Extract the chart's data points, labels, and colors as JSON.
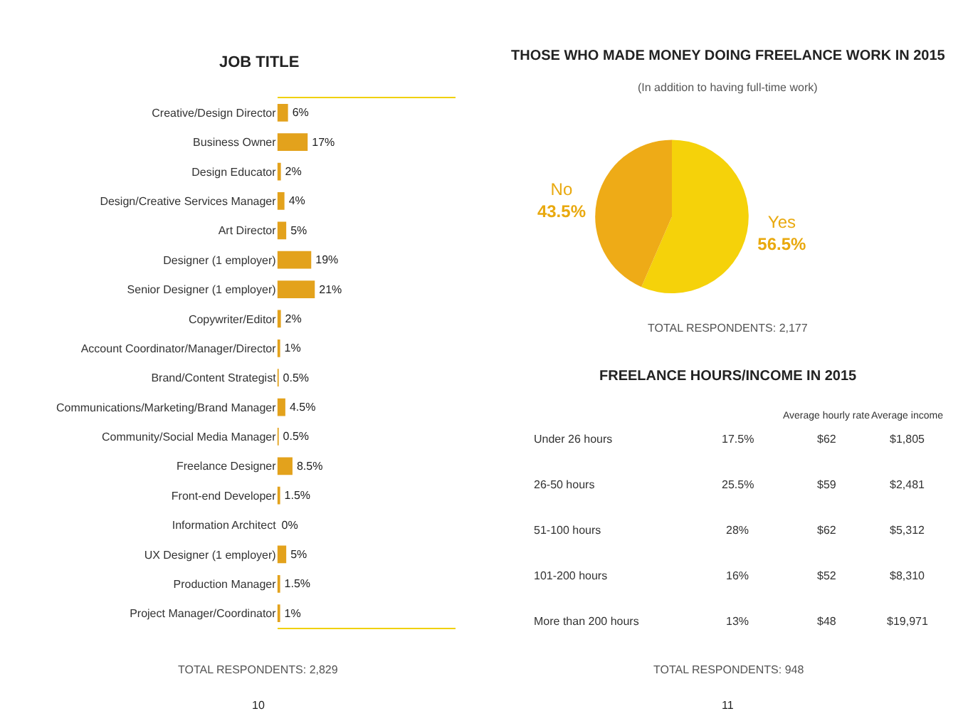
{
  "chart_data": [
    {
      "type": "bar",
      "orientation": "horizontal",
      "title": "JOB TITLE",
      "categories": [
        "Creative/Design Director",
        "Business Owner",
        "Design Educator",
        "Design/Creative Services Manager",
        "Art Director",
        "Designer (1 employer)",
        "Senior Designer (1 employer)",
        "Copywriter/Editor",
        "Account Coordinator/Manager/Director",
        "Brand/Content Strategist",
        "Communications/Marketing/Brand Manager",
        "Community/Social Media Manager",
        "Freelance Designer",
        "Front-end Developer",
        "Information Architect",
        "UX Designer (1 employer)",
        "Production Manager",
        "Project Manager/Coordinator"
      ],
      "values": [
        6,
        17,
        2,
        4,
        5,
        19,
        21,
        2,
        1,
        0.5,
        4.5,
        0.5,
        8.5,
        1.5,
        0,
        5,
        1.5,
        1
      ],
      "value_labels": [
        "6%",
        "17%",
        "2%",
        "4%",
        "5%",
        "19%",
        "21%",
        "2%",
        "1%",
        "0.5%",
        "4.5%",
        "0.5%",
        "8.5%",
        "1.5%",
        "0%",
        "5%",
        "1.5%",
        "1%"
      ],
      "color": "#e3a21c",
      "xlim": [
        0,
        100
      ],
      "tick_labels": "y",
      "annotations": [
        "TOTAL RESPONDENTS: 2,829",
        "10"
      ]
    },
    {
      "type": "pie",
      "title": "THOSE WHO MADE MONEY DOING FREELANCE WORK IN 2015",
      "subtitle": "(In addition to having full-time work)",
      "categories": [
        "Yes",
        "No"
      ],
      "values": [
        56.5,
        43.5
      ],
      "value_labels": [
        "56.5%",
        "43.5%"
      ],
      "colors": [
        "#f5d20a",
        "#eeab17"
      ],
      "annotations": [
        "TOTAL RESPONDENTS: 2,177"
      ]
    },
    {
      "type": "other",
      "title": "FREELANCE HOURS/INCOME IN 2015",
      "categories": [
        "Under 26 hours",
        "26-50 hours",
        "51-100 hours",
        "101-200 hours",
        "More than 200 hours"
      ],
      "series": [
        {
          "values": [
            17.5,
            25.5,
            28,
            16,
            13
          ],
          "value_labels": [
            "17.5%",
            "25.5%",
            "28%",
            "16%",
            "13%"
          ]
        },
        {
          "name": "Average hourly rate",
          "values": [
            62,
            59,
            62,
            52,
            48
          ],
          "value_labels": [
            "$62",
            "$59",
            "$62",
            "$52",
            "$48"
          ]
        },
        {
          "name": "Average income",
          "values": [
            1805,
            2481,
            5312,
            8310,
            19971
          ],
          "value_labels": [
            "$1,805",
            "$2,481",
            "$5,312",
            "$8,310",
            "$19,971"
          ]
        }
      ],
      "annotations": [
        "TOTAL RESPONDENTS: 948",
        "11"
      ]
    }
  ]
}
